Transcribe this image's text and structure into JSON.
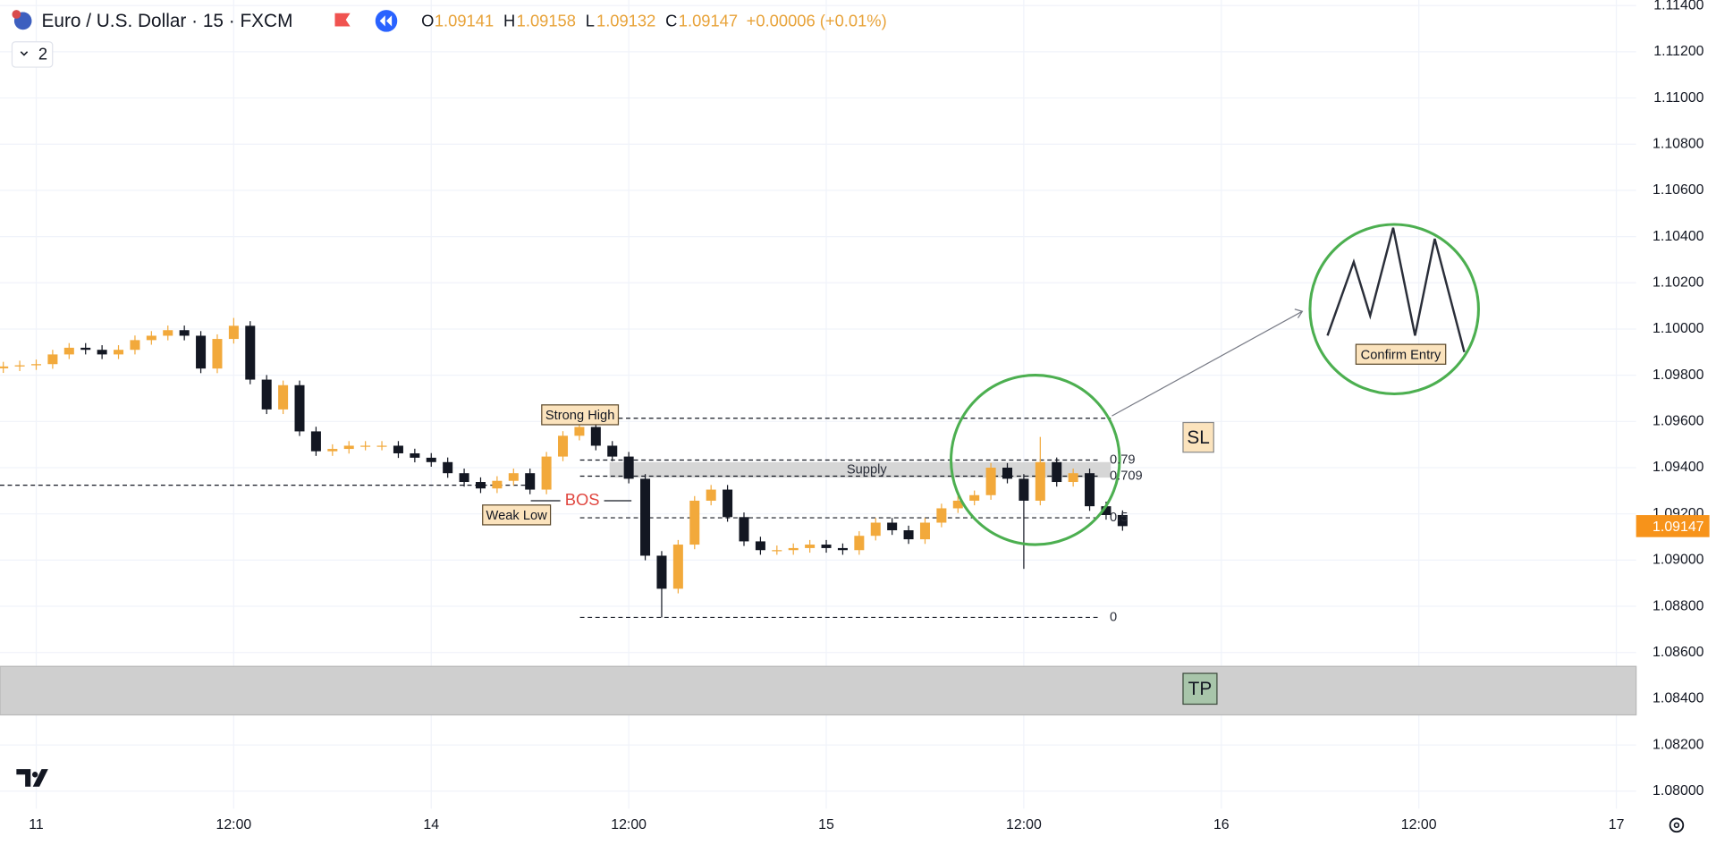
{
  "header": {
    "symbol": "Euro / U.S. Dollar · 15 · FXCM",
    "ohlc": [
      {
        "label": "O",
        "value": 1.09141
      },
      {
        "label": "H",
        "value": 1.09158
      },
      {
        "label": "L",
        "value": 1.09132
      },
      {
        "label": "C",
        "value": 1.09147
      }
    ],
    "change": "+0.00006 (+0.01%)",
    "indicators": 2
  },
  "chart_data": {
    "type": "candlestick",
    "up_color": "#f2a93b",
    "down_color": "#131722",
    "x": [
      -2,
      -1,
      0,
      1,
      2,
      3,
      4,
      5,
      6,
      7,
      8,
      9,
      10,
      11,
      12,
      13,
      14,
      15,
      16,
      17,
      18,
      19,
      20,
      21,
      22,
      23,
      24,
      25,
      26,
      27,
      28,
      29,
      30,
      31,
      32,
      33,
      34,
      35,
      36,
      37,
      38,
      39,
      40,
      41,
      42,
      43,
      44,
      45,
      46,
      47,
      48,
      49,
      50,
      51,
      52,
      53,
      54,
      55,
      56,
      57,
      58,
      59,
      60,
      61,
      62,
      63,
      64,
      65,
      66
    ],
    "open": [
      1.0983,
      1.09838,
      1.09843,
      1.09848,
      1.0989,
      1.09919,
      1.0991,
      1.0989,
      1.0991,
      1.09952,
      1.09971,
      1.09995,
      1.09971,
      1.09829,
      1.09957,
      1.10014,
      1.09781,
      1.09652,
      1.09757,
      1.09557,
      1.09471,
      1.09481,
      1.09495,
      1.09495,
      1.09495,
      1.09462,
      1.09443,
      1.09424,
      1.09376,
      1.09338,
      1.0931,
      1.09343,
      1.09376,
      1.09305,
      1.09448,
      1.09538,
      1.09576,
      1.09495,
      1.09448,
      1.09352,
      1.09019,
      1.08876,
      1.09067,
      1.09257,
      1.09305,
      1.09186,
      1.09081,
      1.09043,
      1.09043,
      1.09052,
      1.09067,
      1.09052,
      1.09043,
      1.09105,
      1.09162,
      1.09129,
      1.0909,
      1.09162,
      1.09224,
      1.09257,
      1.09281,
      1.094,
      1.09352,
      1.09257,
      1.09424,
      1.09338,
      1.09376,
      1.09233,
      1.09195
    ],
    "high": [
      1.09858,
      1.09863,
      1.09868,
      1.0991,
      1.09939,
      1.09939,
      1.0993,
      1.0993,
      1.09972,
      1.09991,
      1.10015,
      1.10015,
      1.09991,
      1.09977,
      1.10048,
      1.10034,
      1.09801,
      1.09777,
      1.09777,
      1.09577,
      1.09501,
      1.09515,
      1.09515,
      1.09515,
      1.09515,
      1.09482,
      1.09463,
      1.09444,
      1.09396,
      1.09358,
      1.09363,
      1.09396,
      1.09396,
      1.09468,
      1.09558,
      1.09614,
      1.09596,
      1.09515,
      1.09468,
      1.09372,
      1.09039,
      1.09087,
      1.09277,
      1.09325,
      1.09325,
      1.09206,
      1.09101,
      1.09063,
      1.09072,
      1.09087,
      1.09087,
      1.09072,
      1.09125,
      1.09182,
      1.09182,
      1.09149,
      1.09182,
      1.09244,
      1.09277,
      1.09301,
      1.0942,
      1.0942,
      1.09372,
      1.09533,
      1.09444,
      1.09396,
      1.09396,
      1.09253,
      1.09215
    ],
    "low": [
      1.0981,
      1.09818,
      1.09823,
      1.09828,
      1.0987,
      1.0989,
      1.0987,
      1.0987,
      1.0989,
      1.09932,
      1.09951,
      1.09951,
      1.09809,
      1.09809,
      1.09937,
      1.09761,
      1.09632,
      1.09632,
      1.09537,
      1.09451,
      1.09451,
      1.09461,
      1.09475,
      1.09475,
      1.09442,
      1.09423,
      1.09404,
      1.09356,
      1.09318,
      1.0929,
      1.0929,
      1.09323,
      1.09285,
      1.09285,
      1.09428,
      1.09518,
      1.09475,
      1.09428,
      1.09332,
      1.08999,
      1.08752,
      1.08856,
      1.09047,
      1.09237,
      1.09166,
      1.09061,
      1.09023,
      1.09023,
      1.09023,
      1.09032,
      1.09032,
      1.09023,
      1.09023,
      1.09085,
      1.09109,
      1.0907,
      1.0907,
      1.09142,
      1.09204,
      1.09237,
      1.09261,
      1.09332,
      1.08962,
      1.09237,
      1.09318,
      1.09318,
      1.09213,
      1.09175,
      1.09127
    ],
    "close": [
      1.09838,
      1.09843,
      1.09848,
      1.0989,
      1.09919,
      1.0991,
      1.0989,
      1.0991,
      1.09952,
      1.09971,
      1.09995,
      1.09971,
      1.09829,
      1.09957,
      1.10014,
      1.09781,
      1.09652,
      1.09757,
      1.09557,
      1.09471,
      1.09481,
      1.09495,
      1.09495,
      1.09495,
      1.09462,
      1.09443,
      1.09424,
      1.09376,
      1.09338,
      1.0931,
      1.09343,
      1.09376,
      1.09305,
      1.09448,
      1.09538,
      1.09576,
      1.09495,
      1.09448,
      1.09352,
      1.09019,
      1.08876,
      1.09067,
      1.09257,
      1.09305,
      1.09186,
      1.09081,
      1.09043,
      1.09043,
      1.09052,
      1.09067,
      1.09052,
      1.09043,
      1.09105,
      1.09162,
      1.09129,
      1.0909,
      1.09162,
      1.09224,
      1.09257,
      1.09281,
      1.094,
      1.09352,
      1.09257,
      1.09424,
      1.09338,
      1.09376,
      1.09233,
      1.09195,
      1.09147
    ],
    "xlim": [
      -2.2,
      97.2
    ],
    "xticks": [
      {
        "value": 0,
        "label": "11"
      },
      {
        "value": 12,
        "label": "12:00"
      },
      {
        "value": 24,
        "label": "14"
      },
      {
        "value": 36,
        "label": "12:00"
      },
      {
        "value": 48,
        "label": "15"
      },
      {
        "value": 60,
        "label": "12:00"
      },
      {
        "value": 72,
        "label": "16"
      },
      {
        "value": 84,
        "label": "12:00"
      },
      {
        "value": 96,
        "label": "17"
      }
    ],
    "ylim": [
      1.07924,
      1.11424
    ],
    "yticks": [
      {
        "value": 1.08,
        "label": "1.08000"
      },
      {
        "value": 1.082,
        "label": "1.08200"
      },
      {
        "value": 1.084,
        "label": "1.08400"
      },
      {
        "value": 1.086,
        "label": "1.08600"
      },
      {
        "value": 1.088,
        "label": "1.08800"
      },
      {
        "value": 1.09,
        "label": "1.09000"
      },
      {
        "value": 1.092,
        "label": "1.09200"
      },
      {
        "value": 1.094,
        "label": "1.09400"
      },
      {
        "value": 1.096,
        "label": "1.09600"
      },
      {
        "value": 1.098,
        "label": "1.09800"
      },
      {
        "value": 1.1,
        "label": "1.10000"
      },
      {
        "value": 1.102,
        "label": "1.10200"
      },
      {
        "value": 1.104,
        "label": "1.10400"
      },
      {
        "value": 1.106,
        "label": "1.10600"
      },
      {
        "value": 1.108,
        "label": "1.10800"
      },
      {
        "value": 1.11,
        "label": "1.11000"
      },
      {
        "value": 1.112,
        "label": "1.11200"
      },
      {
        "value": 1.114,
        "label": "1.11400"
      }
    ],
    "grid": true,
    "fib": {
      "high": 1.09614,
      "low": 1.08752,
      "levels": [
        0.79,
        0.709,
        0.5,
        0
      ]
    },
    "supply": {
      "label": "Supply",
      "top": 1.09424,
      "bottom": 1.09357
    },
    "tp_zone": {
      "label": "TP",
      "top": 1.0854,
      "bottom": 1.0833
    },
    "weak_low": {
      "label": "Weak Low",
      "level": 1.09324
    },
    "bos": {
      "label": "BOS",
      "level": 1.09257
    },
    "strong_high": {
      "label": "Strong High"
    },
    "sl_label": "SL",
    "confirm_entry": "Confirm Entry"
  }
}
